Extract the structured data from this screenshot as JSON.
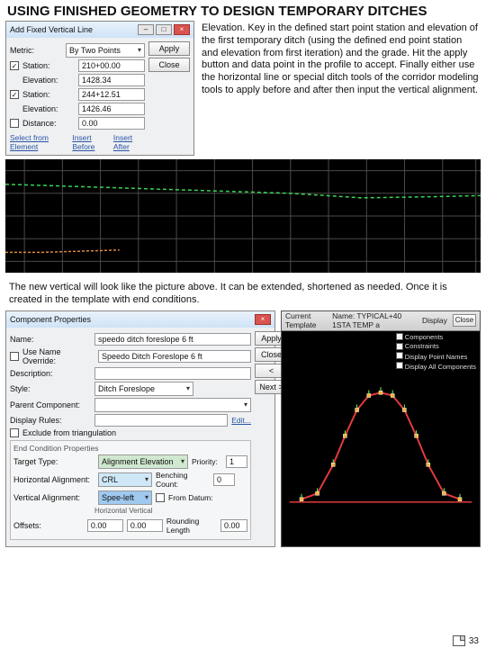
{
  "heading": "USING FINISHED GEOMETRY TO DESIGN TEMPORARY DITCHES",
  "dialog1": {
    "title": "Add Fixed Vertical Line",
    "metric_label": "Metric:",
    "metric_value": "By Two Points",
    "station_label": "Station:",
    "station_value": "210+00.00",
    "elev_label": "Elevation:",
    "elev_value": "1428.34",
    "station2_label": "Station:",
    "station2_value": "244+12.51",
    "elev2_label": "Elevation:",
    "elev2_value": "1426.46",
    "distance_label": "Distance:",
    "distance_value": "0.00",
    "chk1": "✓",
    "chk2": "✓",
    "chk3": "",
    "link1": "Select from Element",
    "link2": "Insert Before",
    "link3": "Insert After",
    "btn_apply": "Apply",
    "btn_close": "Close"
  },
  "rtext": "Elevation. Key in the defined start point station and elevation of the first temporary ditch (using the defined end point station and elevation from first iteration) and the grade. Hit the apply button and data point in the profile to accept. Finally either use the horizontal line or special ditch tools of the corridor modeling tools to apply before and after then input the vertical alignment.",
  "para2": "The new vertical will look like the picture above. It can be extended, shortened as needed. Once it is created in the template with end conditions.",
  "chart": {
    "bg": "#000000",
    "grid_color": "#4a4a4a",
    "xgrid": [
      0.04,
      0.12,
      0.2,
      0.28,
      0.36,
      0.44,
      0.52,
      0.6,
      0.68,
      0.76,
      0.84,
      0.92,
      0.99
    ],
    "ygrid": [
      0.1,
      0.3,
      0.5,
      0.7,
      0.9
    ],
    "series": [
      {
        "color": "#39d353",
        "dash": "4 3",
        "pts": [
          [
            0.0,
            0.22
          ],
          [
            0.15,
            0.24
          ],
          [
            0.3,
            0.26
          ],
          [
            0.45,
            0.28
          ],
          [
            0.6,
            0.3
          ],
          [
            0.75,
            0.34
          ],
          [
            0.9,
            0.33
          ],
          [
            1.0,
            0.32
          ]
        ]
      },
      {
        "color": "#d98a3e",
        "dash": "3 2",
        "pts": [
          [
            0.0,
            0.82
          ],
          [
            0.08,
            0.82
          ],
          [
            0.16,
            0.81
          ],
          [
            0.24,
            0.8
          ]
        ]
      }
    ]
  },
  "comp": {
    "title": "Component Properties",
    "name_label": "Name:",
    "name_value": "speedo ditch foreslope 6 ft",
    "use_name_label": "Use Name Override:",
    "use_name_value": "Speedo Ditch Foreslope 6 ft",
    "desc_label": "Description:",
    "desc_value": "",
    "style_label": "Style:",
    "style_value": "Ditch Foreslope",
    "parent_label": "Parent Component:",
    "parent_value": "",
    "disp_label": "Display Rules:",
    "exclude_label": "Exclude from triangulation",
    "section_title": "End Condition Properties",
    "target_label": "Target Type:",
    "target_value": "Alignment Elevation",
    "priority_label": "Priority:",
    "priority_value": "1",
    "halign_label": "Horizontal Alignment:",
    "halign_value": "CRL",
    "offset_label": "Benching Count:",
    "offset_value": "0",
    "valign_label": "Vertical Alignment:",
    "valign_value": "Spee-left",
    "fromdat_label": "From Datum:",
    "hv_header": "Horizontal            Vertical",
    "offsets_label": "Offsets:",
    "h_off": "0.00",
    "v_off": "0.00",
    "round_label": "Rounding Length",
    "round_value": "0.00",
    "btn_apply": "Apply",
    "btn_close": "Close",
    "btn_prev": "< Previous",
    "btn_next": "Next >",
    "edit_link": "Edit..."
  },
  "preview": {
    "hdr_left": "Current Template",
    "hdr_name": "Name: TYPICAL+40 1STA TEMP a",
    "disp_label": "Display",
    "comp_chk": "Components",
    "constr_chk": "Constraints",
    "pt_chk": "Display Point Names",
    "all_chk": "Display All Components",
    "btn_close": "Close",
    "shape": {
      "stroke": "#e23b3b",
      "fill": "none",
      "pts": [
        [
          0.1,
          0.92
        ],
        [
          0.18,
          0.88
        ],
        [
          0.26,
          0.68
        ],
        [
          0.32,
          0.48
        ],
        [
          0.38,
          0.3
        ],
        [
          0.44,
          0.2
        ],
        [
          0.5,
          0.18
        ],
        [
          0.56,
          0.2
        ],
        [
          0.62,
          0.3
        ],
        [
          0.68,
          0.48
        ],
        [
          0.74,
          0.68
        ],
        [
          0.82,
          0.88
        ],
        [
          0.9,
          0.92
        ]
      ],
      "ground": [
        [
          0.04,
          0.94
        ],
        [
          0.96,
          0.94
        ]
      ],
      "tick_color": "#66ff66"
    },
    "bg": "#000000"
  },
  "page_number": "33"
}
